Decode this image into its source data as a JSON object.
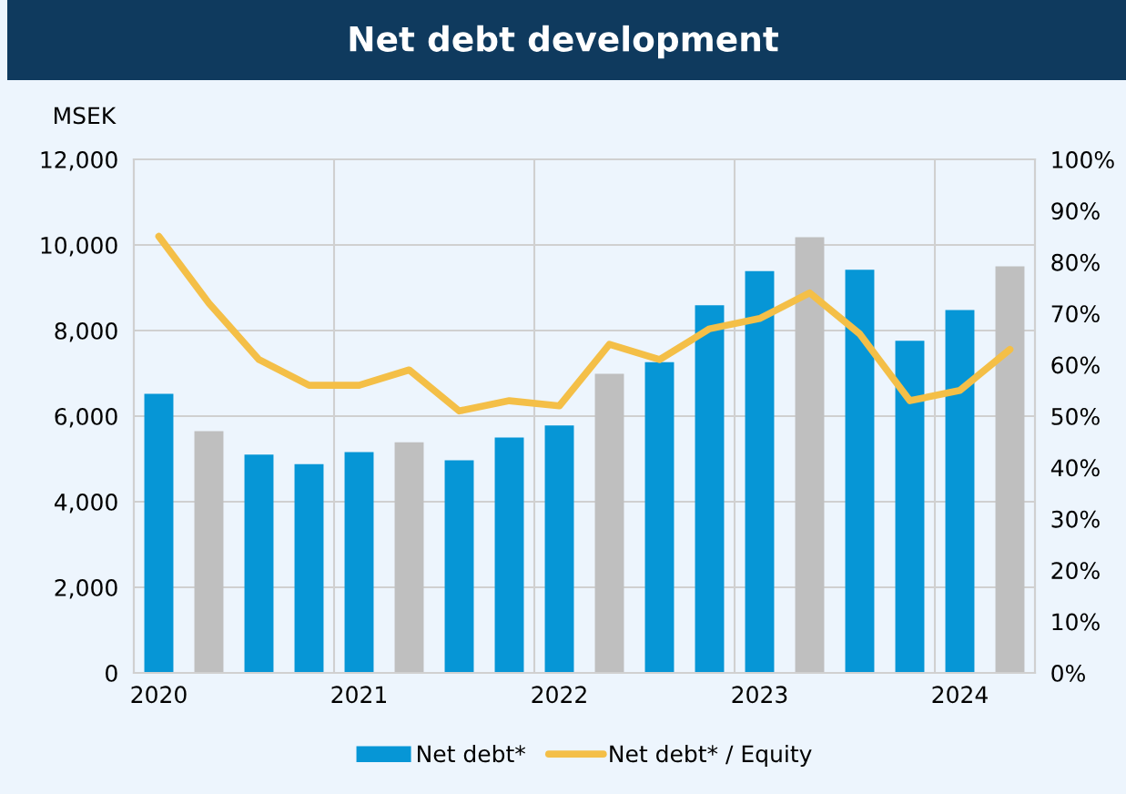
{
  "chart_data": {
    "type": "bar",
    "title": "Net debt development",
    "ylabel": "MSEK",
    "categories": [
      "2020",
      null,
      null,
      null,
      "2021",
      null,
      null,
      null,
      "2022",
      null,
      null,
      null,
      "2023",
      null,
      null,
      null,
      "2024",
      null
    ],
    "series": [
      {
        "name": "Net debt*",
        "color": "#0696d6",
        "colors": [
          "#0696d6",
          "#bfbfbf",
          "#0696d6",
          "#0696d6",
          "#0696d6",
          "#bfbfbf",
          "#0696d6",
          "#0696d6",
          "#0696d6",
          "#bfbfbf",
          "#0696d6",
          "#0696d6",
          "#0696d6",
          "#bfbfbf",
          "#0696d6",
          "#0696d6",
          "#0696d6",
          "#bfbfbf"
        ],
        "values": [
          6520,
          5650,
          5100,
          4880,
          5160,
          5390,
          4970,
          5500,
          5780,
          6990,
          7260,
          8590,
          9390,
          10180,
          9420,
          7760,
          8480,
          9500
        ]
      },
      {
        "name": "Net debt* / Equity",
        "type": "line",
        "axis": "y2",
        "color": "#f4bf47",
        "values": [
          85,
          72,
          61,
          56,
          56,
          59,
          51,
          53,
          52,
          64,
          61,
          67,
          69,
          74,
          66,
          53,
          55,
          63
        ]
      }
    ],
    "ylim": [
      0,
      12000
    ],
    "yticks": [
      {
        "value": 0,
        "label": "0"
      },
      {
        "value": 2000,
        "label": "2,000"
      },
      {
        "value": 4000,
        "label": "4,000"
      },
      {
        "value": 6000,
        "label": "6,000"
      },
      {
        "value": 8000,
        "label": "8,000"
      },
      {
        "value": 10000,
        "label": "10,000"
      },
      {
        "value": 12000,
        "label": "12,000"
      }
    ],
    "y2lim": [
      0,
      100
    ],
    "y2ticks": [
      {
        "value": 0,
        "label": "0%"
      },
      {
        "value": 10,
        "label": "10%"
      },
      {
        "value": 20,
        "label": "20%"
      },
      {
        "value": 30,
        "label": "30%"
      },
      {
        "value": 40,
        "label": "40%"
      },
      {
        "value": 50,
        "label": "50%"
      },
      {
        "value": 60,
        "label": "60%"
      },
      {
        "value": 70,
        "label": "70%"
      },
      {
        "value": 80,
        "label": "80%"
      },
      {
        "value": 90,
        "label": "90%"
      },
      {
        "value": 100,
        "label": "100%"
      }
    ],
    "grid": true,
    "legend": "bottom",
    "marker": "none",
    "line_style": "solid"
  }
}
